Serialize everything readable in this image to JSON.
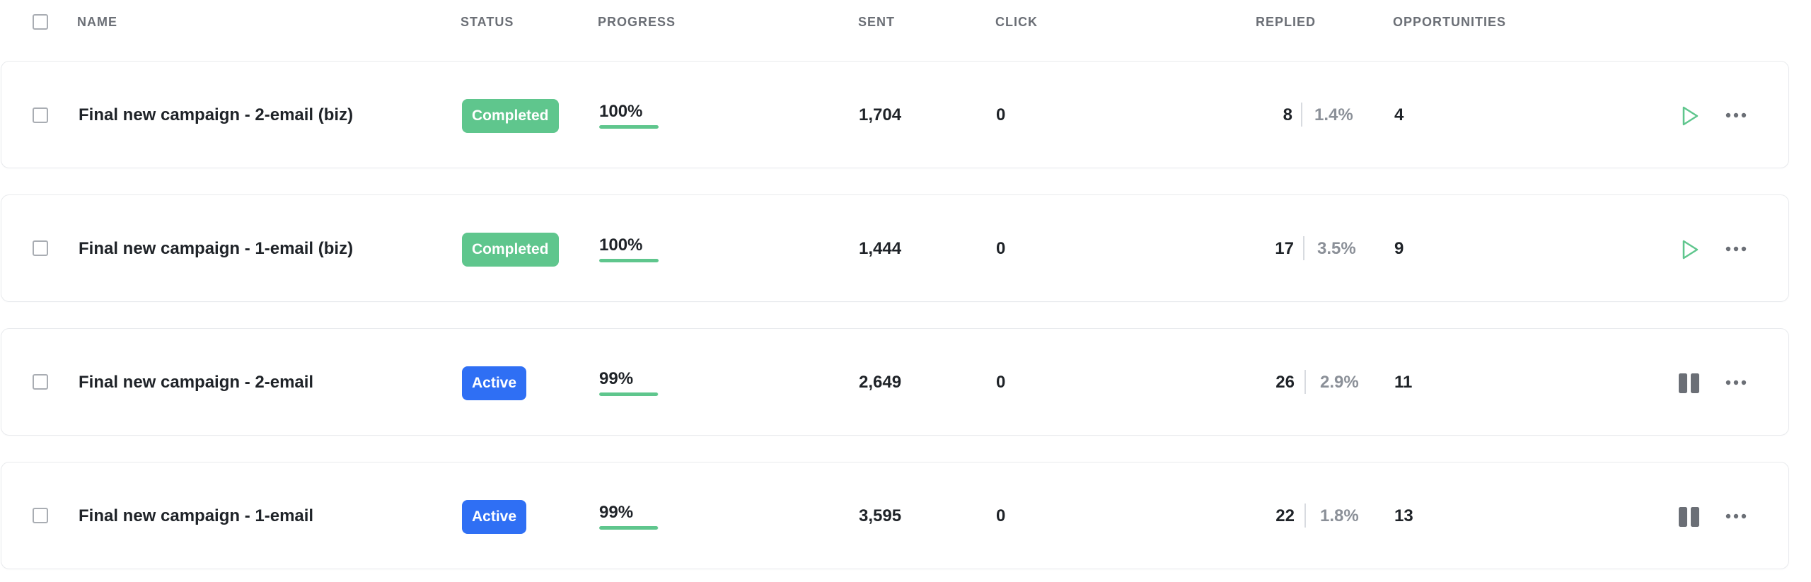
{
  "header": {
    "columns": {
      "name": "NAME",
      "status": "STATUS",
      "progress": "PROGRESS",
      "sent": "SENT",
      "click": "CLICK",
      "replied": "REPLIED",
      "opportunities": "OPPORTUNITIES"
    }
  },
  "colors": {
    "completed": "#5fc68d",
    "active": "#2f6ff4",
    "progress_fill": "#5fc68d",
    "muted_text": "#8b9098"
  },
  "campaigns": [
    {
      "name": "Final new campaign - 2-email (biz)",
      "status": "Completed",
      "progress_label": "100%",
      "progress": 1.0,
      "sent": "1,704",
      "click": "0",
      "replied": "8",
      "replied_pct": "1.4%",
      "opportunities": "4",
      "action_icon": "play-icon"
    },
    {
      "name": "Final new campaign - 1-email (biz)",
      "status": "Completed",
      "progress_label": "100%",
      "progress": 1.0,
      "sent": "1,444",
      "click": "0",
      "replied": "17",
      "replied_pct": "3.5%",
      "opportunities": "9",
      "action_icon": "play-icon"
    },
    {
      "name": "Final new campaign - 2-email",
      "status": "Active",
      "progress_label": "99%",
      "progress": 0.99,
      "sent": "2,649",
      "click": "0",
      "replied": "26",
      "replied_pct": "2.9%",
      "opportunities": "11",
      "action_icon": "pause-icon"
    },
    {
      "name": "Final new campaign - 1-email",
      "status": "Active",
      "progress_label": "99%",
      "progress": 0.99,
      "sent": "3,595",
      "click": "0",
      "replied": "22",
      "replied_pct": "1.8%",
      "opportunities": "13",
      "action_icon": "pause-icon"
    }
  ]
}
